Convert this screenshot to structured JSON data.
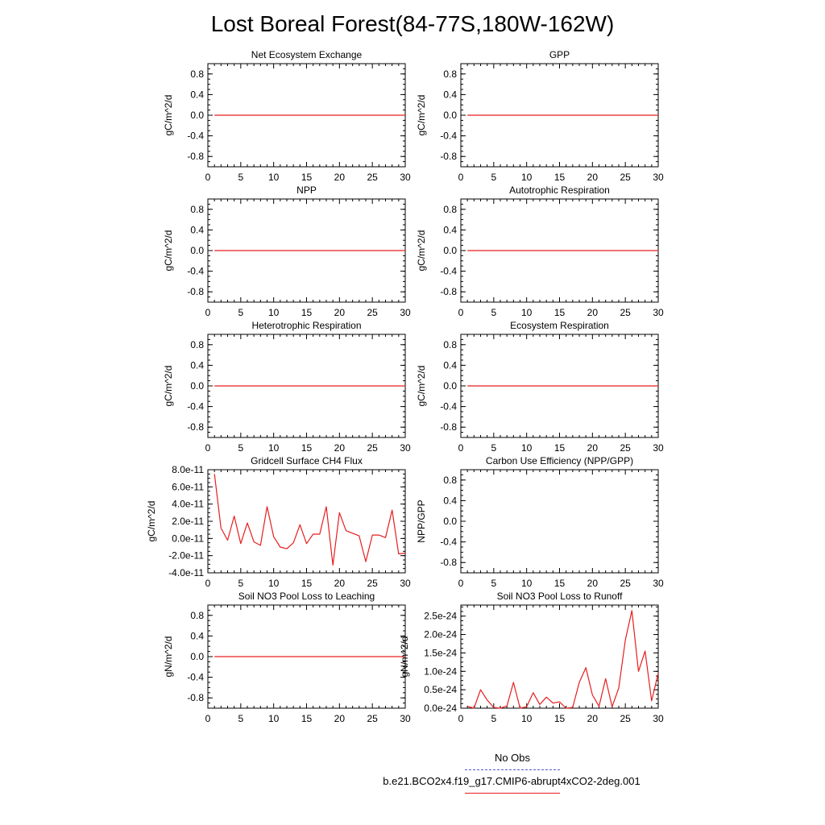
{
  "title": "Lost Boreal Forest(84-77S,180W-162W)",
  "colors": {
    "model": "#e61e1e",
    "obs": "#5555cc",
    "axis": "#000000"
  },
  "legend": {
    "obs_label": "No Obs",
    "model_label": "b.e21.BCO2x4.f19_g17.CMIP6-abrupt4xCO2-2deg.001"
  },
  "chart_data": [
    {
      "type": "line",
      "title": "Net Ecosystem Exchange",
      "ylabel": "gC/m^2/d",
      "xlim": [
        0,
        30
      ],
      "ylim": [
        -1,
        1
      ],
      "xticks": [
        0,
        5,
        10,
        15,
        20,
        25,
        30
      ],
      "xtick_labels": [
        "0",
        "5",
        "10",
        "15",
        "20",
        "25",
        "30"
      ],
      "yticks": [
        0.8,
        0.4,
        0.0,
        -0.4,
        -0.8
      ],
      "ytick_labels": [
        "0.8",
        "0.4",
        "0.0",
        "-0.4",
        "-0.8"
      ],
      "series": [
        {
          "name": "model",
          "x": [
            1,
            30
          ],
          "y": [
            0,
            0
          ]
        }
      ]
    },
    {
      "type": "line",
      "title": "GPP",
      "ylabel": "gC/m^2/d",
      "xlim": [
        0,
        30
      ],
      "ylim": [
        -1,
        1
      ],
      "xticks": [
        0,
        5,
        10,
        15,
        20,
        25,
        30
      ],
      "xtick_labels": [
        "0",
        "5",
        "10",
        "15",
        "20",
        "25",
        "30"
      ],
      "yticks": [
        0.8,
        0.4,
        0.0,
        -0.4,
        -0.8
      ],
      "ytick_labels": [
        "0.8",
        "0.4",
        "0.0",
        "-0.4",
        "-0.8"
      ],
      "series": [
        {
          "name": "model",
          "x": [
            1,
            30
          ],
          "y": [
            0,
            0
          ]
        }
      ]
    },
    {
      "type": "line",
      "title": "NPP",
      "ylabel": "gC/m^2/d",
      "xlim": [
        0,
        30
      ],
      "ylim": [
        -1,
        1
      ],
      "xticks": [
        0,
        5,
        10,
        15,
        20,
        25,
        30
      ],
      "xtick_labels": [
        "0",
        "5",
        "10",
        "15",
        "20",
        "25",
        "30"
      ],
      "yticks": [
        0.8,
        0.4,
        0.0,
        -0.4,
        -0.8
      ],
      "ytick_labels": [
        "0.8",
        "0.4",
        "0.0",
        "-0.4",
        "-0.8"
      ],
      "series": [
        {
          "name": "model",
          "x": [
            1,
            30
          ],
          "y": [
            0,
            0
          ]
        }
      ]
    },
    {
      "type": "line",
      "title": "Autotrophic Respiration",
      "ylabel": "gC/m^2/d",
      "xlim": [
        0,
        30
      ],
      "ylim": [
        -1,
        1
      ],
      "xticks": [
        0,
        5,
        10,
        15,
        20,
        25,
        30
      ],
      "xtick_labels": [
        "0",
        "5",
        "10",
        "15",
        "20",
        "25",
        "30"
      ],
      "yticks": [
        0.8,
        0.4,
        0.0,
        -0.4,
        -0.8
      ],
      "ytick_labels": [
        "0.8",
        "0.4",
        "0.0",
        "-0.4",
        "-0.8"
      ],
      "series": [
        {
          "name": "model",
          "x": [
            1,
            30
          ],
          "y": [
            0,
            0
          ]
        }
      ]
    },
    {
      "type": "line",
      "title": "Heterotrophic Respiration",
      "ylabel": "gC/m^2/d",
      "xlim": [
        0,
        30
      ],
      "ylim": [
        -1,
        1
      ],
      "xticks": [
        0,
        5,
        10,
        15,
        20,
        25,
        30
      ],
      "xtick_labels": [
        "0",
        "5",
        "10",
        "15",
        "20",
        "25",
        "30"
      ],
      "yticks": [
        0.8,
        0.4,
        0.0,
        -0.4,
        -0.8
      ],
      "ytick_labels": [
        "0.8",
        "0.4",
        "0.0",
        "-0.4",
        "-0.8"
      ],
      "series": [
        {
          "name": "model",
          "x": [
            1,
            30
          ],
          "y": [
            0,
            0
          ]
        }
      ]
    },
    {
      "type": "line",
      "title": "Ecosystem Respiration",
      "ylabel": "gC/m^2/d",
      "xlim": [
        0,
        30
      ],
      "ylim": [
        -1,
        1
      ],
      "xticks": [
        0,
        5,
        10,
        15,
        20,
        25,
        30
      ],
      "xtick_labels": [
        "0",
        "5",
        "10",
        "15",
        "20",
        "25",
        "30"
      ],
      "yticks": [
        0.8,
        0.4,
        0.0,
        -0.4,
        -0.8
      ],
      "ytick_labels": [
        "0.8",
        "0.4",
        "0.0",
        "-0.4",
        "-0.8"
      ],
      "series": [
        {
          "name": "model",
          "x": [
            1,
            30
          ],
          "y": [
            0,
            0
          ]
        }
      ]
    },
    {
      "type": "line",
      "title": "Gridcell Surface CH4 Flux",
      "ylabel": "gC/m^2/d",
      "xlim": [
        0,
        30
      ],
      "ylim": [
        -4e-11,
        8e-11
      ],
      "xticks": [
        0,
        5,
        10,
        15,
        20,
        25,
        30
      ],
      "xtick_labels": [
        "0",
        "5",
        "10",
        "15",
        "20",
        "25",
        "30"
      ],
      "yticks": [
        8e-11,
        6e-11,
        4e-11,
        2e-11,
        0,
        -2e-11,
        -4e-11
      ],
      "ytick_labels": [
        "8.0e-11",
        "6.0e-11",
        "4.0e-11",
        "2.0e-11",
        "0.0e-11",
        "-2.0e-11",
        "-4.0e-11"
      ],
      "series": [
        {
          "name": "model",
          "x": [
            1,
            2,
            3,
            4,
            5,
            6,
            7,
            8,
            9,
            10,
            11,
            12,
            13,
            14,
            15,
            16,
            17,
            18,
            19,
            20,
            21,
            22,
            23,
            24,
            25,
            26,
            27,
            28,
            29,
            30
          ],
          "y": [
            7.5e-11,
            1.2e-11,
            -2e-12,
            2.6e-11,
            -6e-12,
            1.8e-11,
            -4e-12,
            -8e-12,
            3.7e-11,
            2e-12,
            -1e-11,
            -1.2e-11,
            -5e-12,
            1.6e-11,
            -6e-12,
            5e-12,
            5e-12,
            3.7e-11,
            -3.1e-11,
            3e-11,
            9e-12,
            6e-12,
            3e-12,
            -2.7e-11,
            4e-12,
            4e-12,
            1e-12,
            3.3e-11,
            -1.8e-11,
            -1.7e-11
          ]
        }
      ]
    },
    {
      "type": "line",
      "title": "Carbon Use Efficiency (NPP/GPP)",
      "ylabel": "NPP/GPP",
      "xlim": [
        0,
        30
      ],
      "ylim": [
        -1,
        1
      ],
      "xticks": [
        0,
        5,
        10,
        15,
        20,
        25,
        30
      ],
      "xtick_labels": [
        "0",
        "5",
        "10",
        "15",
        "20",
        "25",
        "30"
      ],
      "yticks": [
        0.8,
        0.4,
        0.0,
        -0.4,
        -0.8
      ],
      "ytick_labels": [
        "0.8",
        "0.4",
        "0.0",
        "-0.4",
        "-0.8"
      ],
      "series": []
    },
    {
      "type": "line",
      "title": "Soil NO3 Pool Loss to Leaching",
      "ylabel": "gN/m^2/d",
      "xlim": [
        0,
        30
      ],
      "ylim": [
        -1,
        1
      ],
      "xticks": [
        0,
        5,
        10,
        15,
        20,
        25,
        30
      ],
      "xtick_labels": [
        "0",
        "5",
        "10",
        "15",
        "20",
        "25",
        "30"
      ],
      "yticks": [
        0.8,
        0.4,
        0.0,
        -0.4,
        -0.8
      ],
      "ytick_labels": [
        "0.8",
        "0.4",
        "0.0",
        "-0.4",
        "-0.8"
      ],
      "series": [
        {
          "name": "model",
          "x": [
            1,
            30
          ],
          "y": [
            0,
            0
          ]
        }
      ]
    },
    {
      "type": "line",
      "title": "Soil NO3 Pool Loss to Runoff",
      "ylabel": "gN/m^2/d",
      "xlim": [
        0,
        30
      ],
      "ylim": [
        0,
        2.8e-24
      ],
      "xticks": [
        0,
        5,
        10,
        15,
        20,
        25,
        30
      ],
      "xtick_labels": [
        "0",
        "5",
        "10",
        "15",
        "20",
        "25",
        "30"
      ],
      "yticks": [
        2.5e-24,
        2e-24,
        1.5e-24,
        1e-24,
        5e-25,
        0
      ],
      "ytick_labels": [
        "2.5e-24",
        "2.0e-24",
        "1.5e-24",
        "1.0e-24",
        "0.5e-24",
        "0.0e-24"
      ],
      "series": [
        {
          "name": "model",
          "x": [
            1,
            2,
            3,
            4,
            5,
            6,
            7,
            8,
            9,
            10,
            11,
            12,
            13,
            14,
            15,
            16,
            17,
            18,
            19,
            20,
            21,
            22,
            23,
            24,
            25,
            26,
            27,
            28,
            29,
            30
          ],
          "y": [
            5e-26,
            0.0,
            5e-25,
            2.2e-25,
            2e-26,
            0.0,
            6e-26,
            7e-25,
            0.0,
            4e-26,
            4.2e-25,
            1e-25,
            3e-25,
            1.4e-25,
            1.7e-25,
            0.0,
            2e-26,
            7e-25,
            1.1e-24,
            3.6e-25,
            5e-26,
            8e-25,
            4e-26,
            5.5e-25,
            1.85e-24,
            2.65e-24,
            1e-24,
            1.55e-24,
            2e-25,
            9.5e-25
          ]
        }
      ]
    }
  ]
}
